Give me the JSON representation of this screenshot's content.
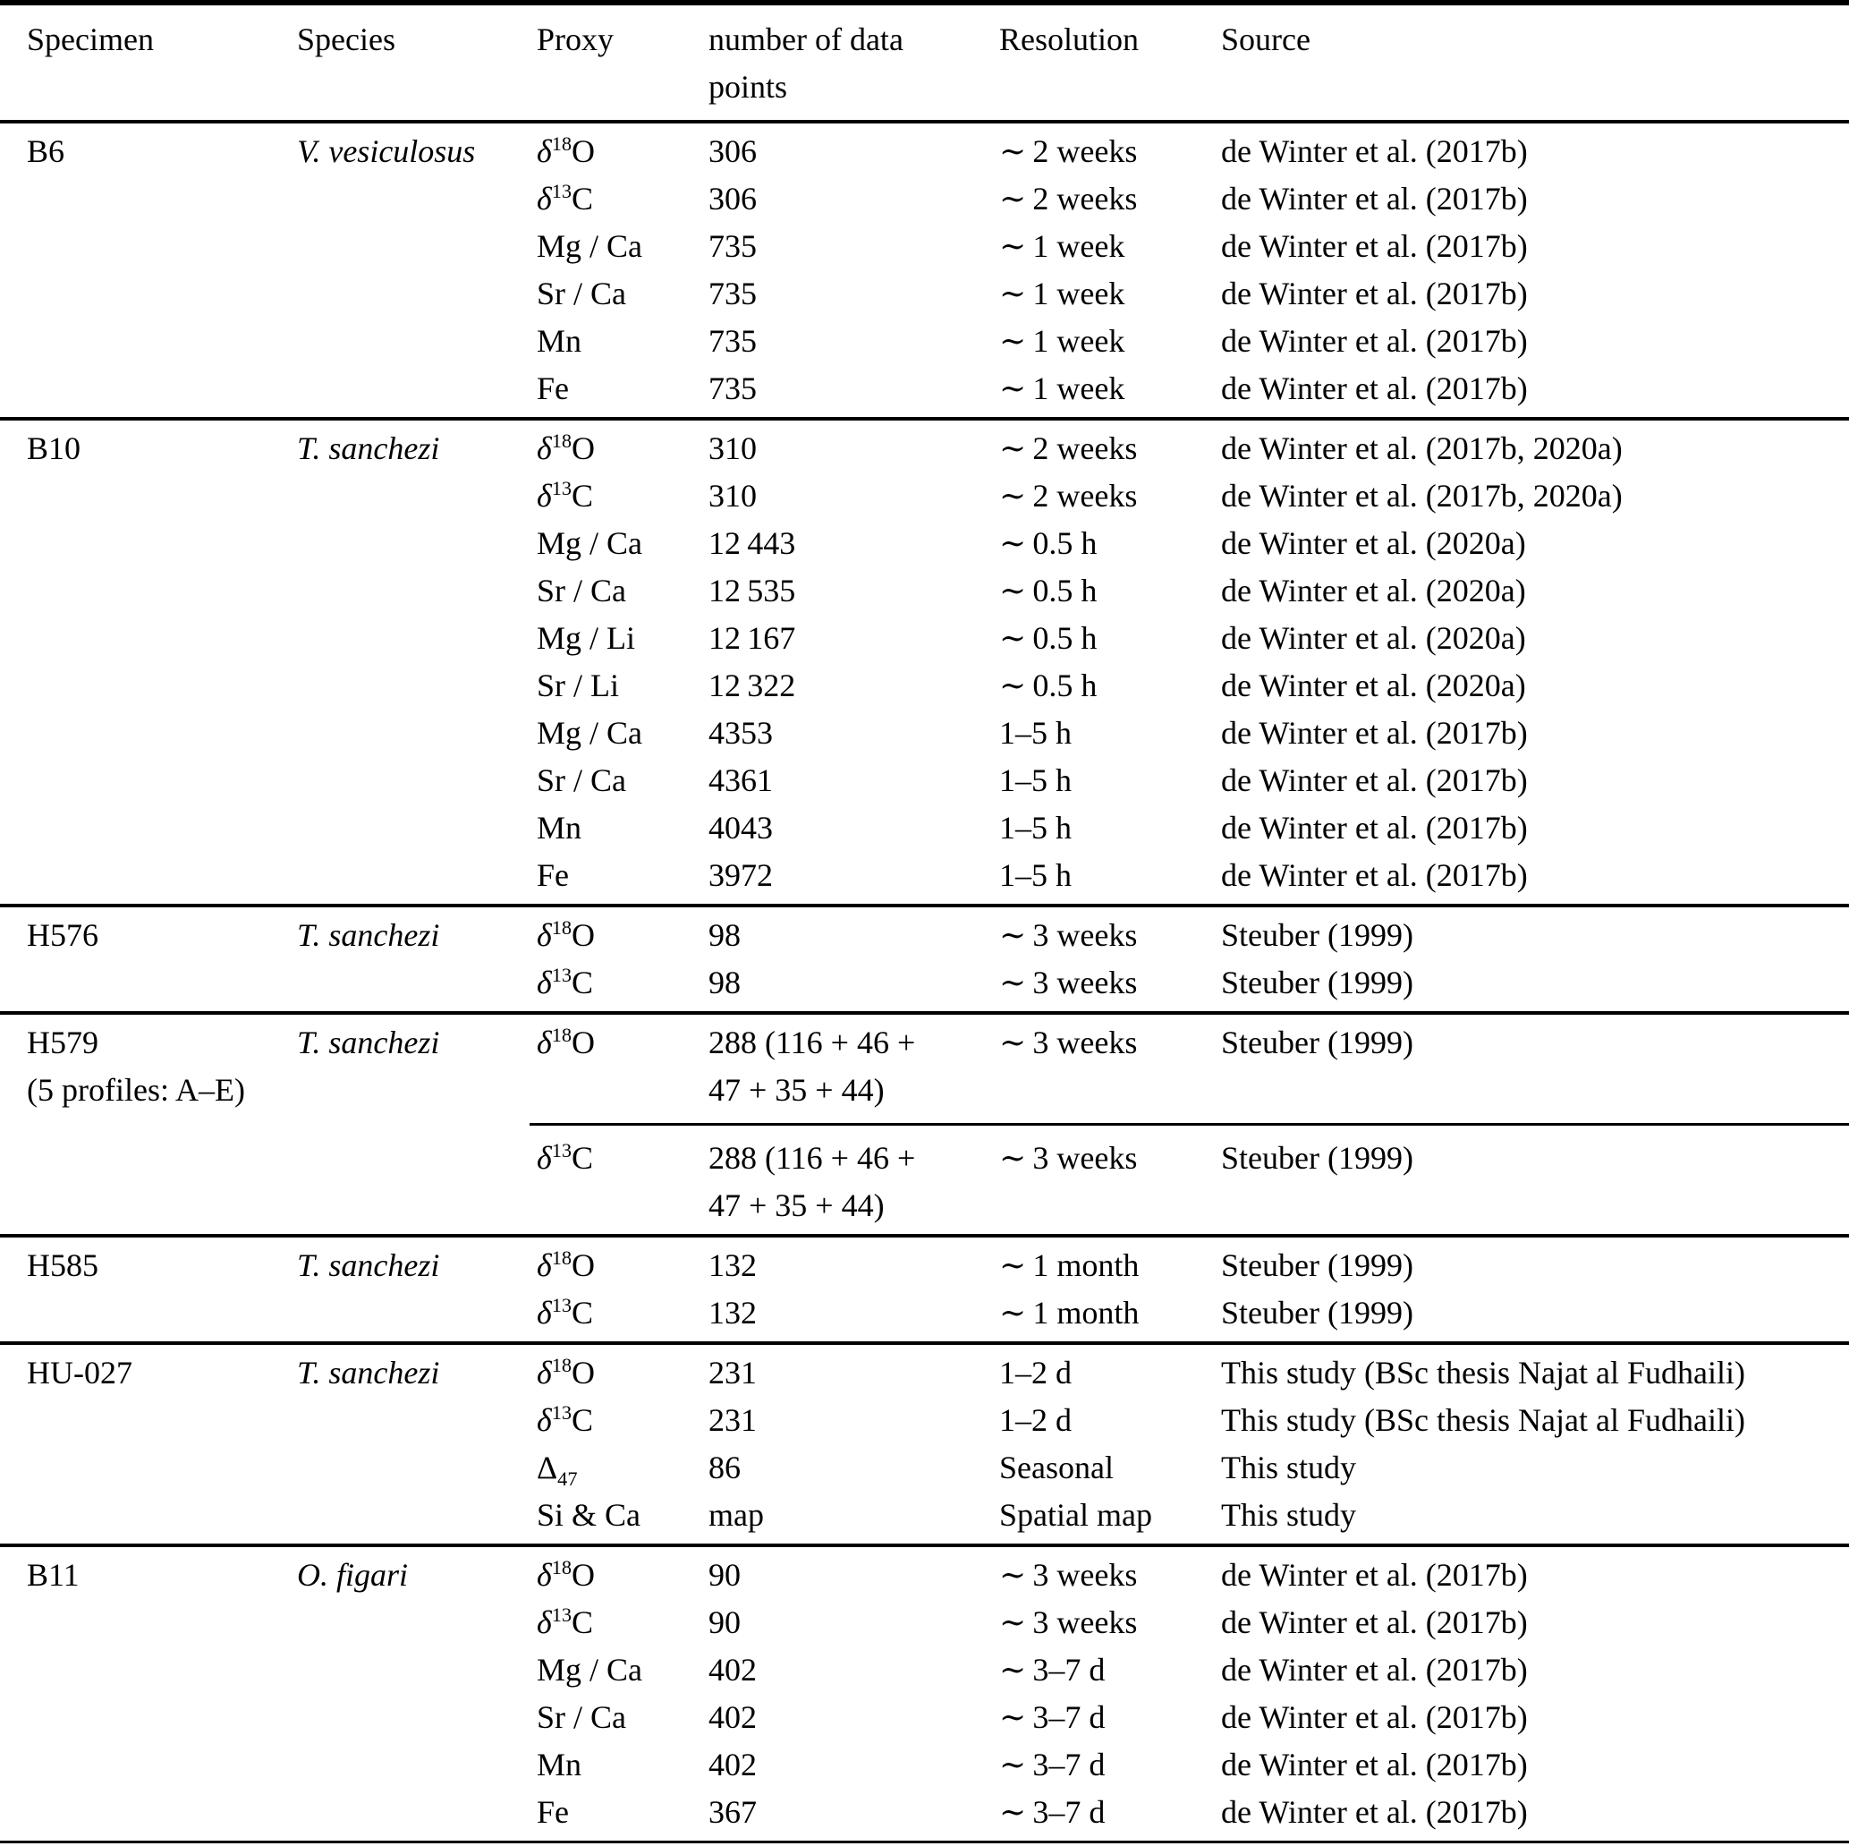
{
  "table": {
    "headers": {
      "specimen": "Specimen",
      "species": "Species",
      "proxy": "Proxy",
      "n": "number of data\npoints",
      "resolution": "Resolution",
      "source": "Source"
    },
    "sections": [
      {
        "specimen": "B6",
        "species": "V. vesiculosus",
        "rows": [
          {
            "proxy": {
              "base": "δ",
              "italic": true,
              "sup": "18",
              "after": "O"
            },
            "n": "306",
            "resolution": "∼ 2 weeks",
            "source": "de Winter et al. (2017b)"
          },
          {
            "proxy": {
              "base": "δ",
              "italic": true,
              "sup": "13",
              "after": "C"
            },
            "n": "306",
            "resolution": "∼ 2 weeks",
            "source": "de Winter et al. (2017b)"
          },
          {
            "proxy": {
              "base": "Mg / Ca"
            },
            "n": "735",
            "resolution": "∼ 1 week",
            "source": "de Winter et al. (2017b)"
          },
          {
            "proxy": {
              "base": "Sr / Ca"
            },
            "n": "735",
            "resolution": "∼ 1 week",
            "source": "de Winter et al. (2017b)"
          },
          {
            "proxy": {
              "base": "Mn"
            },
            "n": "735",
            "resolution": "∼ 1 week",
            "source": "de Winter et al. (2017b)"
          },
          {
            "proxy": {
              "base": "Fe"
            },
            "n": "735",
            "resolution": "∼ 1 week",
            "source": "de Winter et al. (2017b)"
          }
        ]
      },
      {
        "specimen": "B10",
        "species": "T. sanchezi",
        "rows": [
          {
            "proxy": {
              "base": "δ",
              "italic": true,
              "sup": "18",
              "after": "O"
            },
            "n": "310",
            "resolution": "∼ 2 weeks",
            "source": "de Winter et al. (2017b, 2020a)"
          },
          {
            "proxy": {
              "base": "δ",
              "italic": true,
              "sup": "13",
              "after": "C"
            },
            "n": "310",
            "resolution": "∼ 2 weeks",
            "source": "de Winter et al. (2017b, 2020a)"
          },
          {
            "proxy": {
              "base": "Mg / Ca"
            },
            "n": "12 443",
            "resolution": "∼ 0.5 h",
            "source": "de Winter et al. (2020a)"
          },
          {
            "proxy": {
              "base": "Sr / Ca"
            },
            "n": "12 535",
            "resolution": "∼ 0.5 h",
            "source": "de Winter et al. (2020a)"
          },
          {
            "proxy": {
              "base": "Mg / Li"
            },
            "n": "12 167",
            "resolution": "∼ 0.5 h",
            "source": "de Winter et al. (2020a)"
          },
          {
            "proxy": {
              "base": "Sr / Li"
            },
            "n": "12 322",
            "resolution": "∼ 0.5 h",
            "source": "de Winter et al. (2020a)"
          },
          {
            "proxy": {
              "base": "Mg / Ca"
            },
            "n": "4353",
            "resolution": "1–5 h",
            "source": "de Winter et al. (2017b)"
          },
          {
            "proxy": {
              "base": "Sr / Ca"
            },
            "n": "4361",
            "resolution": "1–5 h",
            "source": "de Winter et al. (2017b)"
          },
          {
            "proxy": {
              "base": "Mn"
            },
            "n": "4043",
            "resolution": "1–5 h",
            "source": "de Winter et al. (2017b)"
          },
          {
            "proxy": {
              "base": "Fe"
            },
            "n": "3972",
            "resolution": "1–5 h",
            "source": "de Winter et al. (2017b)"
          }
        ]
      },
      {
        "specimen": "H576",
        "species": "T. sanchezi",
        "rows": [
          {
            "proxy": {
              "base": "δ",
              "italic": true,
              "sup": "18",
              "after": "O"
            },
            "n": "98",
            "resolution": "∼ 3 weeks",
            "source": "Steuber (1999)"
          },
          {
            "proxy": {
              "base": "δ",
              "italic": true,
              "sup": "13",
              "after": "C"
            },
            "n": "98",
            "resolution": "∼ 3 weeks",
            "source": "Steuber (1999)"
          }
        ]
      },
      {
        "specimen": "H579\n(5 profiles: A–E)",
        "species": "T. sanchezi",
        "rule_before_row": 1,
        "rows": [
          {
            "proxy": {
              "base": "δ",
              "italic": true,
              "sup": "18",
              "after": "O"
            },
            "n": "288 (116 + 46 +\n47 + 35 + 44)",
            "resolution": "∼ 3 weeks",
            "source": "Steuber (1999)"
          },
          {
            "proxy": {
              "base": "δ",
              "italic": true,
              "sup": "13",
              "after": "C"
            },
            "n": "288 (116 + 46 +\n47 + 35 + 44)",
            "resolution": "∼ 3 weeks",
            "source": "Steuber (1999)"
          }
        ]
      },
      {
        "specimen": "H585",
        "species": "T. sanchezi",
        "rows": [
          {
            "proxy": {
              "base": "δ",
              "italic": true,
              "sup": "18",
              "after": "O"
            },
            "n": "132",
            "resolution": "∼ 1 month",
            "source": "Steuber (1999)"
          },
          {
            "proxy": {
              "base": "δ",
              "italic": true,
              "sup": "13",
              "after": "C"
            },
            "n": "132",
            "resolution": "∼ 1 month",
            "source": "Steuber (1999)"
          }
        ]
      },
      {
        "specimen": "HU-027",
        "species": "T. sanchezi",
        "rows": [
          {
            "proxy": {
              "base": "δ",
              "italic": true,
              "sup": "18",
              "after": "O"
            },
            "n": "231",
            "resolution": "1–2 d",
            "source": "This study (BSc thesis Najat al Fudhaili)"
          },
          {
            "proxy": {
              "base": "δ",
              "italic": true,
              "sup": "13",
              "after": "C"
            },
            "n": "231",
            "resolution": "1–2 d",
            "source": "This study (BSc thesis Najat al Fudhaili)"
          },
          {
            "proxy": {
              "base": "Δ",
              "sub": "47"
            },
            "n": "86",
            "resolution": "Seasonal",
            "source": "This study"
          },
          {
            "proxy": {
              "base": "Si & Ca"
            },
            "n": "map",
            "resolution": "Spatial map",
            "source": "This study"
          }
        ]
      },
      {
        "specimen": "B11",
        "species": "O. figari",
        "rows": [
          {
            "proxy": {
              "base": "δ",
              "italic": true,
              "sup": "18",
              "after": "O"
            },
            "n": "90",
            "resolution": "∼ 3 weeks",
            "source": "de Winter et al. (2017b)"
          },
          {
            "proxy": {
              "base": "δ",
              "italic": true,
              "sup": "13",
              "after": "C"
            },
            "n": "90",
            "resolution": "∼ 3 weeks",
            "source": "de Winter et al. (2017b)"
          },
          {
            "proxy": {
              "base": "Mg / Ca"
            },
            "n": "402",
            "resolution": "∼ 3–7 d",
            "source": "de Winter et al. (2017b)"
          },
          {
            "proxy": {
              "base": "Sr / Ca"
            },
            "n": "402",
            "resolution": "∼ 3–7 d",
            "source": "de Winter et al. (2017b)"
          },
          {
            "proxy": {
              "base": "Mn"
            },
            "n": "402",
            "resolution": "∼ 3–7 d",
            "source": "de Winter et al. (2017b)"
          },
          {
            "proxy": {
              "base": "Fe"
            },
            "n": "367",
            "resolution": "∼ 3–7 d",
            "source": "de Winter et al. (2017b)"
          }
        ]
      }
    ]
  }
}
